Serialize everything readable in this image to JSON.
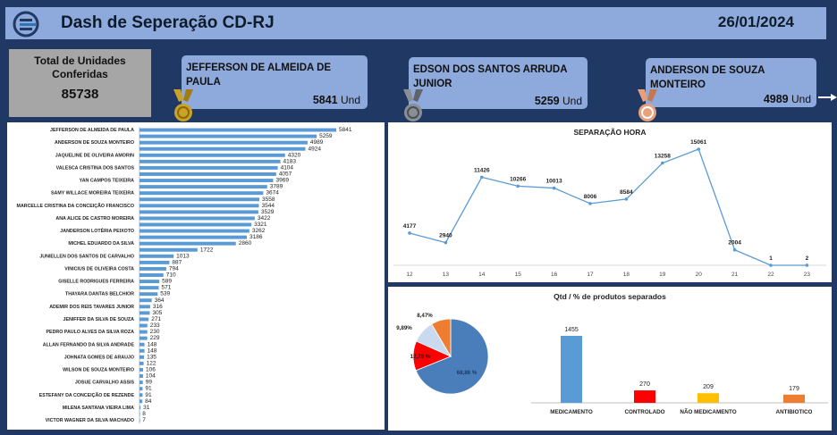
{
  "header": {
    "title": "Dash de Seperação CD-RJ",
    "date": "26/01/2024"
  },
  "total": {
    "label": "Total de Unidades Conferidas",
    "value": "85738"
  },
  "top3": [
    {
      "name": "JEFFERSON DE ALMEIDA DE PAULA",
      "value": "5841",
      "unit": "Und",
      "medal_color": "#c9a227"
    },
    {
      "name": "EDSON DOS SANTOS ARRUDA JUNIOR",
      "value": "5259",
      "unit": "Und",
      "medal_color": "#8a8f96"
    },
    {
      "name": "ANDERSON DE SOUZA MONTEIRO",
      "value": "4989",
      "unit": "Und",
      "medal_color": "#e8a07a"
    }
  ],
  "chart_data": [
    {
      "type": "bar",
      "orientation": "horizontal",
      "color": "#5b9bd5",
      "categories": [
        "JEFFERSON DE ALMEIDA DE PAULA",
        "",
        "ANDERSON DE SOUZA MONTEIRO",
        "",
        "JAQUELINE DE OLIVEIRA AMORIN",
        "",
        "VALESCA CRISTINA DOS SANTOS",
        "",
        "YAN CAMPOS TEIXEIRA",
        "",
        "SAMY WILLACE MOREIRA TEIXEIRA",
        "",
        "MARCELLE CRISTINA DA CONCEIÇÃO FRANCISCO",
        "",
        "ANA ALICE DE CASTRO MOREIRA",
        "",
        "JANDERSON LOTÉRIA PEIXOTO",
        "",
        "MICHEL EDUARDO DA SILVA",
        "",
        "JUNIELLEN DOS SANTOS DE CARVALHO",
        "",
        "VINICIUS DE OLIVEIRA COSTA",
        "",
        "GISELLE RODRIGUES FERREIRA",
        "",
        "THAYARA DANTAS BELCHIOR",
        "",
        "ADEMIR DOS REIS TAVARES JUNIOR",
        "",
        "JENIFFER DA SILVA DE SOUZA",
        "",
        "PEDRO PAULO ALVES DA SILVA ROZA",
        "",
        "ALLAN FERNANDO DA SILVA ANDRADE",
        "",
        "JOHNATA GOMES DE ARAUJO",
        "",
        "WILSON DE SOUZA MONTEIRO",
        "",
        "JOSUE CARVALHO ASSIS",
        "",
        "ESTEFANY DA CONCEIÇÃO DE REZENDE",
        "",
        "MILENA SANTANA VIEIRA LIMA",
        "",
        "VICTOR WAGNER DA SILVA MACHADO"
      ],
      "values": [
        5841,
        5259,
        4989,
        4924,
        4320,
        4183,
        4104,
        4057,
        3969,
        3789,
        3674,
        3558,
        3544,
        3529,
        3422,
        3321,
        3262,
        3186,
        2860,
        1722,
        1013,
        887,
        794,
        710,
        589,
        571,
        539,
        364,
        316,
        305,
        271,
        233,
        230,
        229,
        148,
        148,
        135,
        122,
        106,
        104,
        99,
        91,
        91,
        84,
        31,
        8,
        7
      ],
      "xlim": [
        0,
        6000
      ]
    },
    {
      "type": "line",
      "title": "SEPARAÇÃO HORA",
      "color": "#5b9bd5",
      "x": [
        12,
        13,
        14,
        15,
        16,
        17,
        18,
        19,
        20,
        21,
        22,
        23
      ],
      "y": [
        4177,
        2940,
        11426,
        10266,
        10013,
        8006,
        8584,
        13258,
        15061,
        2004,
        1,
        2
      ]
    },
    {
      "type": "pie",
      "title": "Qtd / % de produtos separados",
      "labels": [
        "MEDICAMENTO",
        "CONTROLADO",
        "NÃO MEDICAMENTO",
        "ANTIBIOTICO"
      ],
      "values": [
        68.86,
        12.78,
        9.89,
        8.47
      ],
      "value_labels": [
        "68,86 %",
        "12,78 %",
        "9,89%",
        "8,47%"
      ],
      "colors": [
        "#4a7ebb",
        "#ff0000",
        "#c9d9ee",
        "#ed7d31"
      ]
    },
    {
      "type": "bar",
      "categories": [
        "MEDICAMENTO",
        "CONTROLADO",
        "NÃO MEDICAMENTO",
        "ANTIBIOTICO"
      ],
      "values": [
        1455,
        270,
        209,
        179
      ],
      "colors": [
        "#5b9bd5",
        "#ff0000",
        "#ffc000",
        "#ed7d31"
      ]
    }
  ]
}
